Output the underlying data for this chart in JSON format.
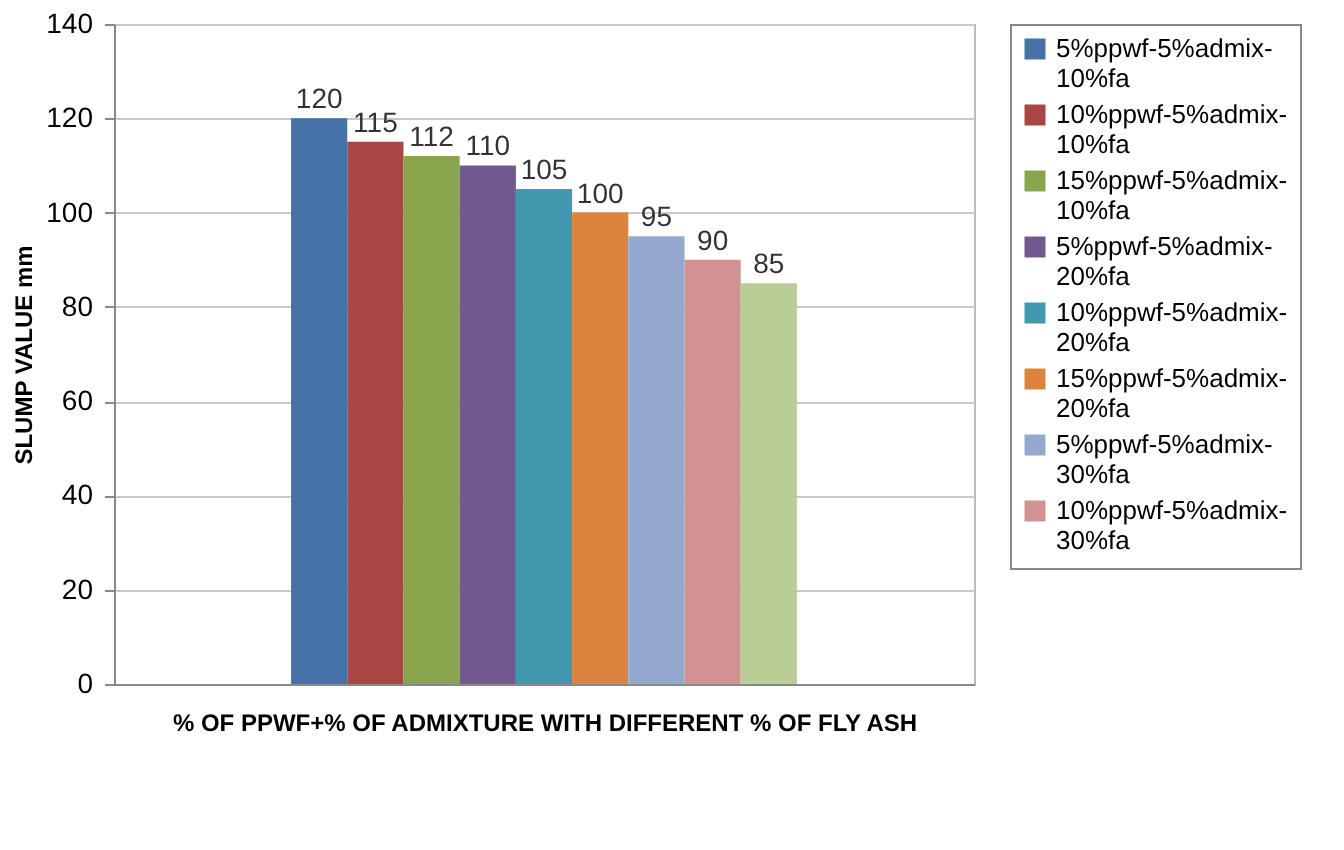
{
  "chart_data": {
    "type": "bar",
    "xlabel": "% OF PPWF+% OF ADMIXTURE WITH DIFFERENT % OF FLY ASH",
    "ylabel": "SLUMP VALUE mm",
    "categories": [
      null
    ],
    "series": [
      {
        "name": "5%ppwf-5%admix-10%fa",
        "color": "#4572a7",
        "values": [
          120
        ]
      },
      {
        "name": "10%ppwf-5%admix-10%fa",
        "color": "#aa4643",
        "values": [
          115
        ]
      },
      {
        "name": "15%ppwf-5%admix-10%fa",
        "color": "#89a54e",
        "values": [
          112
        ]
      },
      {
        "name": "5%ppwf-5%admix-20%fa",
        "color": "#71588f",
        "values": [
          110
        ]
      },
      {
        "name": "10%ppwf-5%admix-20%fa",
        "color": "#4198af",
        "values": [
          105
        ]
      },
      {
        "name": "15%ppwf-5%admix-20%fa",
        "color": "#db843d",
        "values": [
          100
        ]
      },
      {
        "name": "5%ppwf-5%admix-30%fa",
        "color": "#93a9cf",
        "values": [
          95
        ]
      },
      {
        "name": "10%ppwf-5%admix-30%fa",
        "color": "#d19392",
        "values": [
          90
        ]
      },
      {
        "color": "#b9cd96",
        "values": [
          85
        ]
      }
    ],
    "ylim": [
      0,
      140
    ],
    "yticks": [
      0,
      20,
      40,
      60,
      80,
      100,
      120,
      140
    ],
    "grid": "y",
    "legend": "right",
    "data_labels": true
  }
}
